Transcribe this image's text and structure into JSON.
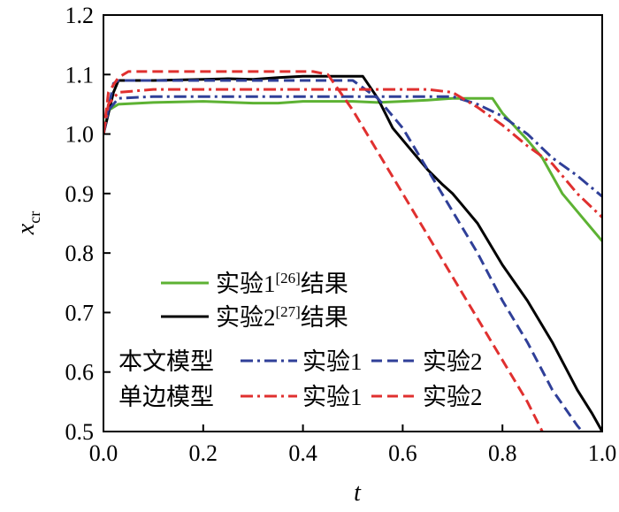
{
  "chart_data": {
    "type": "line",
    "xlabel": "t",
    "ylabel_main": "x",
    "ylabel_sub": "cr",
    "xlim": [
      0.0,
      1.0
    ],
    "ylim": [
      0.5,
      1.2
    ],
    "x_ticks": [
      0.0,
      0.2,
      0.4,
      0.6,
      0.8,
      1.0
    ],
    "x_tick_labels": [
      "0.0",
      "0.2",
      "0.4",
      "0.6",
      "0.8",
      "1.0"
    ],
    "y_ticks": [
      0.5,
      0.6,
      0.7,
      0.8,
      0.9,
      1.0,
      1.1,
      1.2
    ],
    "y_tick_labels": [
      "0.5",
      "0.6",
      "0.7",
      "0.8",
      "0.9",
      "1.0",
      "1.1",
      "1.2"
    ],
    "grid": false,
    "legend": {
      "placement": "bottom-left",
      "exp1_label": "实验1",
      "exp1_ref": "[26]",
      "exp2_label": "实验2",
      "exp2_ref": "[27]",
      "result_suffix": "结果",
      "group_this": "本文模型",
      "group_single": "单边模型",
      "item_exp1": "实验1",
      "item_exp2": "实验2"
    },
    "series": [
      {
        "key": "exp1",
        "color": "#5db233",
        "style": "solid",
        "x": [
          0.0,
          0.01,
          0.03,
          0.1,
          0.2,
          0.3,
          0.35,
          0.4,
          0.5,
          0.55,
          0.6,
          0.65,
          0.7,
          0.75,
          0.78,
          0.8,
          0.85,
          0.88,
          0.92,
          0.96,
          1.0
        ],
        "y": [
          1.0,
          1.04,
          1.05,
          1.053,
          1.055,
          1.052,
          1.052,
          1.055,
          1.055,
          1.053,
          1.055,
          1.057,
          1.06,
          1.06,
          1.06,
          1.035,
          0.99,
          0.96,
          0.9,
          0.86,
          0.82
        ]
      },
      {
        "key": "exp2",
        "color": "#000000",
        "style": "solid",
        "x": [
          0.0,
          0.02,
          0.03,
          0.1,
          0.2,
          0.25,
          0.3,
          0.35,
          0.4,
          0.45,
          0.5,
          0.52,
          0.55,
          0.58,
          0.62,
          0.65,
          0.68,
          0.7,
          0.72,
          0.75,
          0.8,
          0.85,
          0.9,
          0.95,
          0.98,
          1.0
        ],
        "y": [
          1.0,
          1.07,
          1.09,
          1.09,
          1.092,
          1.093,
          1.092,
          1.095,
          1.097,
          1.097,
          1.097,
          1.097,
          1.06,
          1.01,
          0.97,
          0.94,
          0.915,
          0.9,
          0.88,
          0.85,
          0.78,
          0.72,
          0.65,
          0.57,
          0.53,
          0.5
        ]
      },
      {
        "key": "this_exp1",
        "color": "#2f3f98",
        "style": "dashdot",
        "x": [
          0.0,
          0.01,
          0.03,
          0.1,
          0.2,
          0.3,
          0.4,
          0.5,
          0.6,
          0.7,
          0.75,
          0.8,
          0.85,
          0.9,
          0.95,
          1.0
        ],
        "y": [
          1.0,
          1.04,
          1.06,
          1.063,
          1.063,
          1.063,
          1.063,
          1.063,
          1.063,
          1.063,
          1.05,
          1.03,
          1.0,
          0.96,
          0.93,
          0.895
        ]
      },
      {
        "key": "this_exp2",
        "color": "#2f3f98",
        "style": "dashed",
        "x": [
          0.0,
          0.02,
          0.03,
          0.1,
          0.2,
          0.3,
          0.4,
          0.5,
          0.55,
          0.6,
          0.65,
          0.7,
          0.75,
          0.8,
          0.85,
          0.9,
          0.95,
          0.96
        ],
        "y": [
          1.0,
          1.085,
          1.09,
          1.09,
          1.09,
          1.09,
          1.09,
          1.09,
          1.06,
          1.01,
          0.94,
          0.87,
          0.8,
          0.72,
          0.65,
          0.57,
          0.51,
          0.5
        ]
      },
      {
        "key": "single_exp1",
        "color": "#e0302f",
        "style": "dashdot",
        "x": [
          0.0,
          0.01,
          0.03,
          0.1,
          0.2,
          0.3,
          0.4,
          0.5,
          0.6,
          0.65,
          0.7,
          0.75,
          0.8,
          0.85,
          0.9,
          0.95,
          1.0
        ],
        "y": [
          1.0,
          1.05,
          1.07,
          1.075,
          1.075,
          1.075,
          1.075,
          1.075,
          1.075,
          1.075,
          1.07,
          1.045,
          1.015,
          0.98,
          0.95,
          0.9,
          0.86
        ]
      },
      {
        "key": "single_exp2",
        "color": "#e0302f",
        "style": "dashed",
        "x": [
          0.0,
          0.01,
          0.03,
          0.05,
          0.1,
          0.2,
          0.3,
          0.35,
          0.42,
          0.45,
          0.5,
          0.55,
          0.6,
          0.65,
          0.7,
          0.75,
          0.8,
          0.85,
          0.88
        ],
        "y": [
          1.0,
          1.07,
          1.095,
          1.105,
          1.105,
          1.105,
          1.105,
          1.105,
          1.105,
          1.1,
          1.04,
          0.97,
          0.9,
          0.83,
          0.76,
          0.69,
          0.62,
          0.55,
          0.5
        ]
      }
    ]
  }
}
